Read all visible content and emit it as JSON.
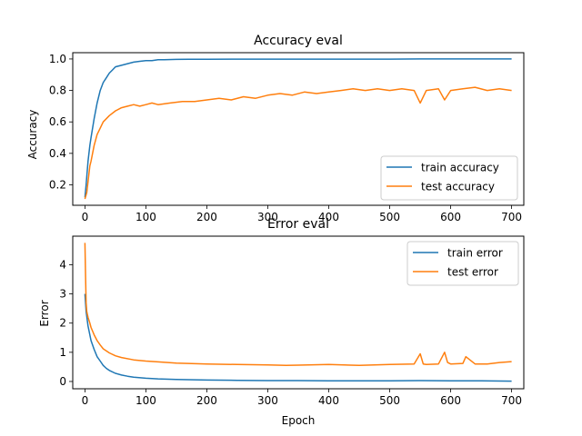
{
  "chart_data": [
    {
      "type": "line",
      "title": "Accuracy eval",
      "xlabel": "",
      "ylabel": "Accuracy",
      "xlim": [
        -20,
        720
      ],
      "ylim": [
        0.07,
        1.04
      ],
      "xticks": [
        0,
        100,
        200,
        300,
        400,
        500,
        600,
        700
      ],
      "yticks": [
        0.2,
        0.4,
        0.6,
        0.8,
        1.0
      ],
      "ytick_labels": [
        "0.2",
        "0.4",
        "0.6",
        "0.8",
        "1.0"
      ],
      "grid": false,
      "legend_position": "lower-right",
      "series": [
        {
          "name": "train accuracy",
          "color": "#1f77b4",
          "x": [
            0,
            2,
            5,
            8,
            10,
            15,
            20,
            25,
            30,
            35,
            40,
            45,
            50,
            60,
            70,
            80,
            90,
            100,
            110,
            120,
            130,
            150,
            170,
            200,
            250,
            300,
            350,
            400,
            450,
            500,
            550,
            600,
            650,
            700
          ],
          "y": [
            0.12,
            0.2,
            0.35,
            0.45,
            0.5,
            0.62,
            0.72,
            0.8,
            0.85,
            0.88,
            0.91,
            0.93,
            0.95,
            0.96,
            0.97,
            0.98,
            0.985,
            0.99,
            0.99,
            0.995,
            0.995,
            0.997,
            0.998,
            0.998,
            0.999,
            0.999,
            0.999,
            0.999,
            0.999,
            0.999,
            1.0,
            1.0,
            1.0,
            1.0
          ]
        },
        {
          "name": "test accuracy",
          "color": "#ff7f0e",
          "x": [
            0,
            3,
            5,
            8,
            10,
            15,
            20,
            25,
            30,
            40,
            50,
            60,
            70,
            80,
            90,
            100,
            110,
            120,
            140,
            160,
            180,
            200,
            220,
            240,
            260,
            280,
            300,
            320,
            340,
            360,
            380,
            400,
            420,
            440,
            460,
            480,
            500,
            520,
            540,
            550,
            560,
            580,
            590,
            600,
            620,
            640,
            660,
            680,
            700
          ],
          "y": [
            0.11,
            0.15,
            0.22,
            0.32,
            0.35,
            0.45,
            0.52,
            0.56,
            0.6,
            0.64,
            0.67,
            0.69,
            0.7,
            0.71,
            0.7,
            0.71,
            0.72,
            0.71,
            0.72,
            0.73,
            0.73,
            0.74,
            0.75,
            0.74,
            0.76,
            0.75,
            0.77,
            0.78,
            0.77,
            0.79,
            0.78,
            0.79,
            0.8,
            0.81,
            0.8,
            0.81,
            0.8,
            0.81,
            0.8,
            0.72,
            0.8,
            0.81,
            0.74,
            0.8,
            0.81,
            0.82,
            0.8,
            0.81,
            0.8
          ]
        }
      ]
    },
    {
      "type": "line",
      "title": "Error eval",
      "xlabel": "Epoch",
      "ylabel": "Error",
      "xlim": [
        -20,
        720
      ],
      "ylim": [
        -0.25,
        4.98
      ],
      "xticks": [
        0,
        100,
        200,
        300,
        400,
        500,
        600,
        700
      ],
      "yticks": [
        0,
        1,
        2,
        3,
        4
      ],
      "ytick_labels": [
        "0",
        "1",
        "2",
        "3",
        "4"
      ],
      "grid": false,
      "legend_position": "upper-right",
      "series": [
        {
          "name": "train error",
          "color": "#1f77b4",
          "x": [
            0,
            2,
            5,
            8,
            10,
            15,
            20,
            25,
            30,
            35,
            40,
            50,
            60,
            70,
            80,
            100,
            120,
            150,
            200,
            250,
            300,
            350,
            400,
            450,
            500,
            550,
            600,
            650,
            700
          ],
          "y": [
            3.0,
            2.4,
            1.9,
            1.6,
            1.4,
            1.1,
            0.85,
            0.7,
            0.55,
            0.45,
            0.38,
            0.28,
            0.22,
            0.18,
            0.15,
            0.11,
            0.09,
            0.07,
            0.05,
            0.04,
            0.03,
            0.03,
            0.02,
            0.02,
            0.02,
            0.03,
            0.02,
            0.02,
            0.01
          ]
        },
        {
          "name": "test error",
          "color": "#ff7f0e",
          "x": [
            0,
            1,
            2,
            3,
            5,
            8,
            10,
            15,
            20,
            25,
            30,
            40,
            50,
            60,
            80,
            100,
            120,
            150,
            200,
            250,
            300,
            330,
            350,
            400,
            450,
            500,
            540,
            550,
            555,
            560,
            580,
            590,
            595,
            600,
            620,
            625,
            640,
            660,
            680,
            700
          ],
          "y": [
            4.75,
            3.6,
            2.7,
            2.4,
            2.2,
            2.0,
            1.85,
            1.6,
            1.4,
            1.25,
            1.12,
            0.98,
            0.88,
            0.82,
            0.74,
            0.7,
            0.67,
            0.63,
            0.6,
            0.58,
            0.57,
            0.55,
            0.56,
            0.58,
            0.55,
            0.58,
            0.6,
            0.95,
            0.6,
            0.58,
            0.6,
            1.0,
            0.65,
            0.6,
            0.62,
            0.85,
            0.6,
            0.6,
            0.65,
            0.68
          ]
        }
      ]
    }
  ]
}
